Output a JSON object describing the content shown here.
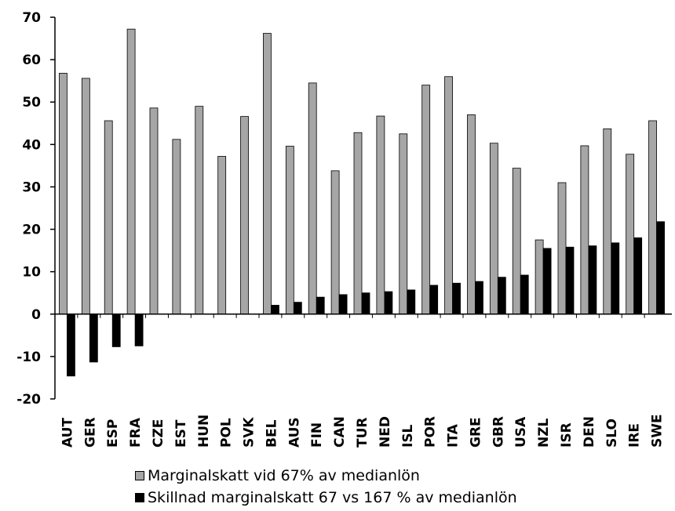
{
  "chart_data": {
    "type": "bar",
    "categories": [
      "AUT",
      "GER",
      "ESP",
      "FRA",
      "CZE",
      "EST",
      "HUN",
      "POL",
      "SVK",
      "BEL",
      "AUS",
      "FIN",
      "CAN",
      "TUR",
      "NED",
      "ISL",
      "POR",
      "ITA",
      "GRE",
      "GBR",
      "USA",
      "NZL",
      "ISR",
      "DEN",
      "SLO",
      "IRE",
      "SWE"
    ],
    "series": [
      {
        "name": "Marginalskatt vid 67% av medianlön",
        "color": "#a6a6a6",
        "values": [
          56.8,
          55.6,
          45.6,
          67.2,
          48.6,
          41.2,
          49.0,
          37.2,
          46.6,
          66.2,
          39.6,
          54.5,
          33.8,
          42.8,
          46.7,
          42.5,
          54.0,
          56.0,
          47.0,
          40.3,
          34.4,
          17.5,
          31.0,
          39.7,
          43.7,
          37.7,
          45.6
        ]
      },
      {
        "name": "Skillnad marginalskatt 67 vs 167 % av medianlön",
        "color": "#000000",
        "values": [
          -14.6,
          -11.3,
          -7.7,
          -7.5,
          0,
          0,
          0,
          0,
          0,
          2.1,
          2.8,
          4.0,
          4.6,
          5.0,
          5.3,
          5.7,
          6.8,
          7.3,
          7.7,
          8.7,
          9.2,
          15.5,
          15.8,
          16.1,
          16.8,
          18.0,
          21.8
        ]
      }
    ],
    "yticks": [
      -20,
      -10,
      0,
      10,
      20,
      30,
      40,
      50,
      60,
      70
    ],
    "ylim": [
      -20,
      70
    ],
    "title": "",
    "xlabel": "",
    "ylabel": "",
    "legend_position": "bottom",
    "grid": false
  }
}
